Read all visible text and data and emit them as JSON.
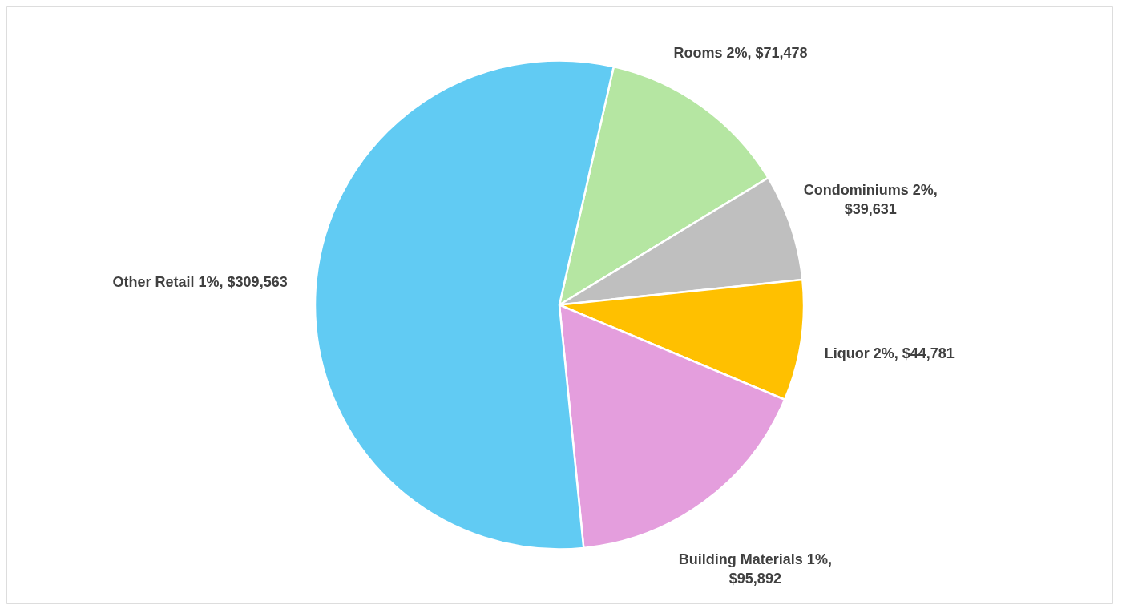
{
  "chart_data": {
    "type": "pie",
    "categories": [
      "Rooms",
      "Condominiums",
      "Liquor",
      "Building Materials",
      "Other Retail"
    ],
    "values": [
      71478,
      39631,
      44781,
      95892,
      309563
    ],
    "value_labels": [
      "2%, $71,478",
      "2%, $39,631",
      "2%, $44,781",
      "1%, $95,892",
      "1%, $309,563"
    ],
    "colors": [
      "#b5e6a2",
      "#bfbfbf",
      "#ffc000",
      "#e49edd",
      "#61cbf3"
    ],
    "legend": false
  }
}
